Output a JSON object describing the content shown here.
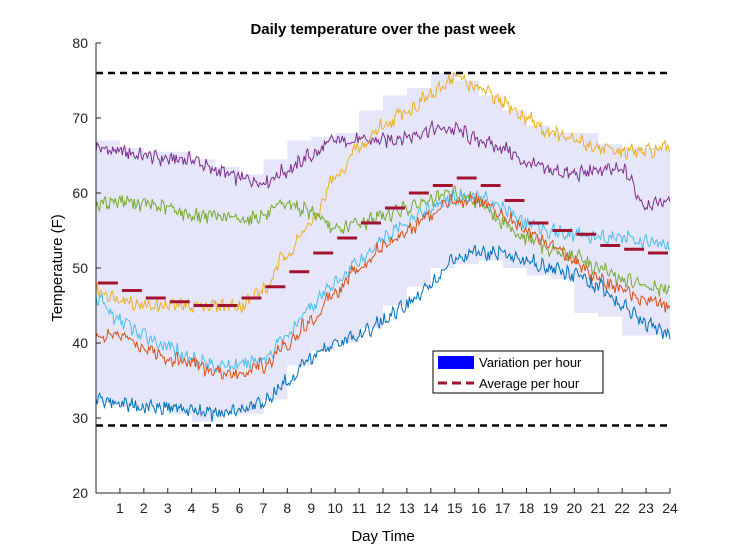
{
  "chart_data": {
    "type": "line",
    "title": "Daily temperature over the past week",
    "xlabel": "Day Time",
    "ylabel": "Temperature (F)",
    "xlim": [
      0,
      24
    ],
    "ylim": [
      20,
      80
    ],
    "xticks": [
      1,
      2,
      3,
      4,
      5,
      6,
      7,
      8,
      9,
      10,
      11,
      12,
      13,
      14,
      15,
      16,
      17,
      18,
      19,
      20,
      21,
      22,
      23,
      24
    ],
    "xtick_labels": [
      "1",
      "2",
      "3",
      "4",
      "5",
      "6",
      "7",
      "8",
      "9",
      "10",
      "11",
      "12",
      "13",
      "14",
      "15",
      "16",
      "17",
      "18",
      "19",
      "20",
      "21",
      "22",
      "23",
      "24"
    ],
    "yticks": [
      20,
      30,
      40,
      50,
      60,
      70,
      80
    ],
    "ytick_labels": [
      "20",
      "30",
      "40",
      "50",
      "60",
      "70",
      "80"
    ],
    "grid": false,
    "legend_position": "lower-right",
    "reference_lines": [
      {
        "y": 76,
        "style": "dashed",
        "color": "#000000"
      },
      {
        "y": 29,
        "style": "dashed",
        "color": "#000000"
      }
    ],
    "series": [
      {
        "color": "#7e2f8e",
        "x": [
          0,
          1,
          2,
          3,
          4,
          5,
          6,
          7,
          8,
          9,
          10,
          11,
          12,
          13,
          14,
          15,
          16,
          17,
          18,
          19,
          20,
          21,
          22,
          23,
          24
        ],
        "values": [
          66,
          65.5,
          65,
          64.5,
          64.5,
          63,
          62,
          61.5,
          63,
          65,
          67,
          67,
          67,
          67.5,
          68.5,
          68.5,
          67,
          66,
          64,
          63,
          62.5,
          63,
          63,
          58.5,
          59
        ]
      },
      {
        "color": "#edb120",
        "x": [
          0,
          1,
          2,
          3,
          4,
          5,
          6,
          7,
          8,
          9,
          10,
          11,
          12,
          13,
          14,
          15,
          16,
          17,
          18,
          19,
          20,
          21,
          22,
          23,
          24
        ],
        "values": [
          47,
          46,
          45,
          45,
          45,
          45,
          45,
          47,
          52,
          56,
          62,
          66,
          69,
          71,
          73,
          75.5,
          74,
          72,
          70,
          68,
          67,
          66,
          65.5,
          65.5,
          66
        ]
      },
      {
        "color": "#77ac30",
        "x": [
          0,
          1,
          2,
          3,
          4,
          5,
          6,
          7,
          8,
          9,
          10,
          11,
          12,
          13,
          14,
          15,
          16,
          17,
          18,
          19,
          20,
          21,
          22,
          23,
          24
        ],
        "values": [
          58.5,
          59,
          58.5,
          58,
          57,
          57,
          56.5,
          57,
          58.5,
          57.5,
          55,
          56,
          57,
          58,
          59,
          60,
          59,
          56,
          54,
          52.5,
          51.5,
          50,
          48.5,
          47.5,
          47
        ]
      },
      {
        "color": "#4dbeee",
        "x": [
          0,
          1,
          2,
          3,
          4,
          5,
          6,
          7,
          8,
          9,
          10,
          11,
          12,
          13,
          14,
          15,
          16,
          17,
          18,
          19,
          20,
          21,
          22,
          23,
          24
        ],
        "values": [
          46,
          43,
          41,
          39.5,
          38,
          37,
          37,
          38,
          41,
          45,
          48,
          51,
          54,
          56,
          58,
          59.5,
          59.5,
          58,
          56,
          55,
          54.5,
          54,
          54,
          53.5,
          53
        ]
      },
      {
        "color": "#d95319",
        "x": [
          0,
          1,
          2,
          3,
          4,
          5,
          6,
          7,
          8,
          9,
          10,
          11,
          12,
          13,
          14,
          15,
          16,
          17,
          18,
          19,
          20,
          21,
          22,
          23,
          24
        ],
        "values": [
          41,
          41,
          39.5,
          38,
          37.5,
          36,
          36,
          37,
          40,
          43,
          47,
          50,
          53,
          55,
          57,
          59,
          59,
          57,
          55,
          53,
          51,
          48.5,
          47,
          46,
          45
        ]
      },
      {
        "color": "#0072bd",
        "x": [
          0,
          1,
          2,
          3,
          4,
          5,
          6,
          7,
          8,
          9,
          10,
          11,
          12,
          13,
          14,
          15,
          16,
          17,
          18,
          19,
          20,
          21,
          22,
          23,
          24
        ],
        "values": [
          32.5,
          32,
          31.5,
          31.5,
          31,
          30.5,
          31,
          32,
          35,
          38,
          40,
          41,
          43,
          45,
          48,
          51,
          52,
          52,
          51,
          50,
          49,
          47.5,
          45,
          42.5,
          41
        ]
      }
    ],
    "variation_band": {
      "name": "Variation per hour",
      "color": "#0000ff",
      "fill": "#e6e6fa",
      "hours": [
        1,
        2,
        3,
        4,
        5,
        6,
        7,
        8,
        9,
        10,
        11,
        12,
        13,
        14,
        15,
        16,
        17,
        18,
        19,
        20,
        21,
        22,
        23,
        24
      ],
      "low": [
        32,
        31.5,
        31.5,
        30.5,
        29.5,
        30.5,
        30.5,
        32.5,
        37,
        39,
        40,
        42,
        45,
        47.5,
        50,
        50.5,
        51,
        50,
        49,
        48.5,
        44,
        43.5,
        41,
        41
      ],
      "high": [
        67,
        66,
        65.5,
        65.5,
        64.5,
        63.5,
        62.5,
        64.5,
        67,
        67.5,
        68,
        71,
        73,
        74,
        76,
        75,
        73,
        71,
        69,
        68,
        68,
        66.5,
        66,
        66
      ]
    },
    "average": {
      "name": "Average per hour",
      "color": "#a2142f",
      "style": "dashed",
      "hours": [
        1,
        2,
        3,
        4,
        5,
        6,
        7,
        8,
        9,
        10,
        11,
        12,
        13,
        14,
        15,
        16,
        17,
        18,
        19,
        20,
        21,
        22,
        23,
        24
      ],
      "values": [
        48,
        47,
        46,
        45.5,
        45,
        45,
        46,
        47.5,
        49.5,
        52,
        54,
        56,
        58,
        60,
        61,
        62,
        61,
        59,
        56,
        55,
        54.5,
        53,
        52.5,
        52
      ]
    }
  }
}
